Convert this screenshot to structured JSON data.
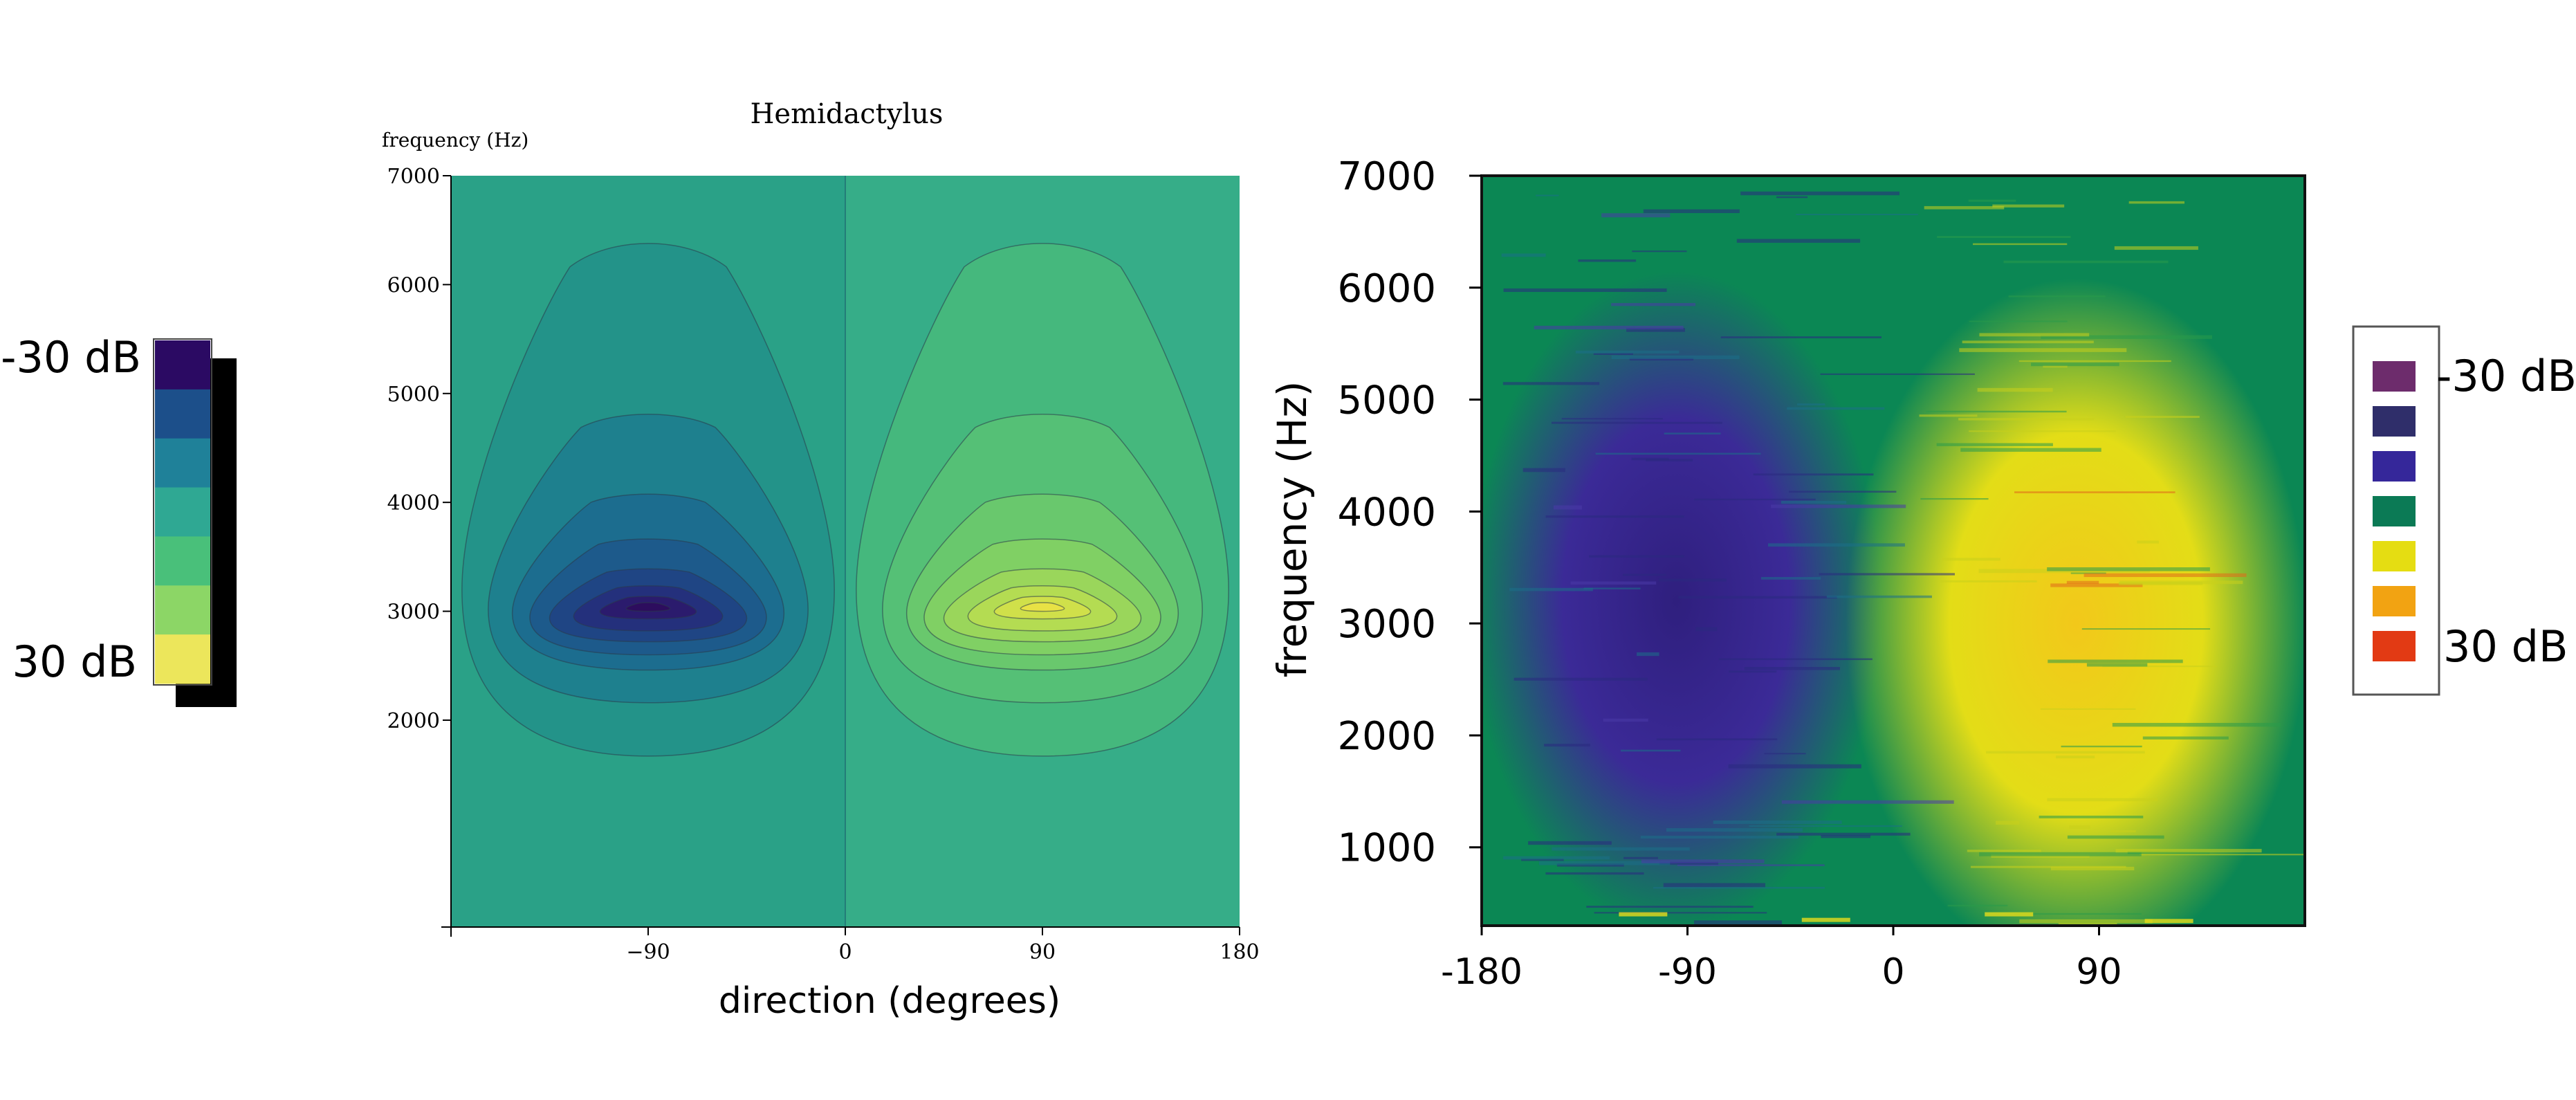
{
  "left_legend": {
    "top_label": "-30 dB",
    "bottom_label": "30 dB",
    "colors": [
      "#2b0a63",
      "#1c4f8a",
      "#1f8199",
      "#2fa893",
      "#49c07a",
      "#8cd666",
      "#ece65b"
    ]
  },
  "right_legend": {
    "top_label": "-30 dB",
    "bottom_label": "30 dB",
    "colors": [
      "#6d2c6c",
      "#2f2e6a",
      "#35279a",
      "#0b7a55",
      "#e5dd12",
      "#f2a312",
      "#e23a14"
    ]
  },
  "chart_data": [
    {
      "type": "contour",
      "title": "Hemidactylus",
      "ylabel": "frequency (Hz)",
      "xlabel": "direction (degrees)",
      "xlim": [
        -180,
        180
      ],
      "ylim": [
        100,
        7000
      ],
      "x_ticks": [
        -90,
        0,
        90,
        180
      ],
      "y_ticks": [
        2000,
        3000,
        4000,
        5000,
        6000,
        7000
      ],
      "grid": false,
      "divider_x": 0,
      "background_colors": {
        "left": "#2aa187",
        "right": "#36ad88"
      },
      "left_lobe": {
        "center": [
          -90,
          3050
        ],
        "levels": [
          {
            "color": "#239389",
            "x_halfwidth": 85,
            "y_bottom": 1670,
            "y_top": 6450
          },
          {
            "color": "#1e808e",
            "x_halfwidth": 73,
            "y_bottom": 2160,
            "y_top": 4850
          },
          {
            "color": "#1c6d8f",
            "x_halfwidth": 62,
            "y_bottom": 2460,
            "y_top": 4100
          },
          {
            "color": "#1d5a8b",
            "x_halfwidth": 54,
            "y_bottom": 2600,
            "y_top": 3680
          },
          {
            "color": "#1f4584",
            "x_halfwidth": 45,
            "y_bottom": 2720,
            "y_top": 3400
          },
          {
            "color": "#24307c",
            "x_halfwidth": 34,
            "y_bottom": 2820,
            "y_top": 3240
          },
          {
            "color": "#2b1b6d",
            "x_halfwidth": 22,
            "y_bottom": 2930,
            "y_top": 3140
          },
          {
            "color": "#2d0d5e",
            "x_halfwidth": 10,
            "y_bottom": 3000,
            "y_top": 3080
          }
        ]
      },
      "right_lobe": {
        "center": [
          90,
          3050
        ],
        "levels": [
          {
            "color": "#45b87d",
            "x_halfwidth": 85,
            "y_bottom": 1670,
            "y_top": 6450
          },
          {
            "color": "#55c076",
            "x_halfwidth": 73,
            "y_bottom": 2160,
            "y_top": 4850
          },
          {
            "color": "#69c86d",
            "x_halfwidth": 62,
            "y_bottom": 2460,
            "y_top": 4100
          },
          {
            "color": "#80d064",
            "x_halfwidth": 54,
            "y_bottom": 2600,
            "y_top": 3680
          },
          {
            "color": "#9ad65b",
            "x_halfwidth": 45,
            "y_bottom": 2720,
            "y_top": 3400
          },
          {
            "color": "#b4dc52",
            "x_halfwidth": 34,
            "y_bottom": 2820,
            "y_top": 3240
          },
          {
            "color": "#d0e04a",
            "x_halfwidth": 22,
            "y_bottom": 2930,
            "y_top": 3140
          },
          {
            "color": "#e8e245",
            "x_halfwidth": 10,
            "y_bottom": 3000,
            "y_top": 3080
          }
        ]
      }
    },
    {
      "type": "heatmap",
      "ylabel": "frequency (Hz)",
      "xlabel": "",
      "xlim": [
        -180,
        180
      ],
      "ylim": [
        300,
        7000
      ],
      "x_ticks": [
        -180,
        -90,
        0,
        90
      ],
      "y_ticks": [
        1000,
        2000,
        3000,
        4000,
        5000,
        6000,
        7000
      ],
      "grid": false,
      "left_half_color": "#3b2a97",
      "right_half_color": "#e3dd17",
      "background_color": "#0b8754",
      "transition_color": "#2f8f3f"
    }
  ]
}
